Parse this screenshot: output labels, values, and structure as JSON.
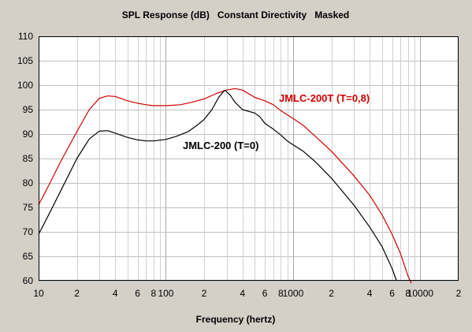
{
  "chart_data": {
    "type": "line",
    "title": "SPL Response (dB)   Constant Directivity   Masked",
    "xlabel": "Frequency (hertz)",
    "ylabel": "",
    "x_scale": "log",
    "xlim": [
      10,
      20000
    ],
    "ylim": [
      60,
      110
    ],
    "grid": true,
    "y_ticks": [
      60,
      65,
      70,
      75,
      80,
      85,
      90,
      95,
      100,
      105,
      110
    ],
    "x_tick_labels": [
      {
        "x": 10,
        "label": "10"
      },
      {
        "x": 20,
        "label": "2"
      },
      {
        "x": 40,
        "label": "4"
      },
      {
        "x": 60,
        "label": "6"
      },
      {
        "x": 80,
        "label": "8"
      },
      {
        "x": 100,
        "label": "100"
      },
      {
        "x": 200,
        "label": "2"
      },
      {
        "x": 400,
        "label": "4"
      },
      {
        "x": 600,
        "label": "6"
      },
      {
        "x": 800,
        "label": "8"
      },
      {
        "x": 1000,
        "label": "1000"
      },
      {
        "x": 2000,
        "label": "2"
      },
      {
        "x": 4000,
        "label": "4"
      },
      {
        "x": 6000,
        "label": "6"
      },
      {
        "x": 8000,
        "label": "8"
      },
      {
        "x": 10000,
        "label": "10000"
      },
      {
        "x": 20000,
        "label": "2"
      }
    ],
    "series": [
      {
        "name": "JMLC-200T (T=0,8)",
        "color": "#d00000",
        "points": [
          [
            10,
            75.5
          ],
          [
            12,
            79.5
          ],
          [
            15,
            84.5
          ],
          [
            20,
            90.5
          ],
          [
            25,
            95
          ],
          [
            30,
            97.3
          ],
          [
            35,
            97.8
          ],
          [
            40,
            97.7
          ],
          [
            50,
            96.8
          ],
          [
            60,
            96.3
          ],
          [
            70,
            96.0
          ],
          [
            80,
            95.8
          ],
          [
            100,
            95.8
          ],
          [
            130,
            96.0
          ],
          [
            160,
            96.5
          ],
          [
            200,
            97.2
          ],
          [
            250,
            98.3
          ],
          [
            300,
            99.0
          ],
          [
            350,
            99.3
          ],
          [
            400,
            99.0
          ],
          [
            500,
            97.5
          ],
          [
            600,
            96.8
          ],
          [
            700,
            96.0
          ],
          [
            800,
            94.8
          ],
          [
            1000,
            93.2
          ],
          [
            1200,
            91.8
          ],
          [
            1500,
            89.5
          ],
          [
            2000,
            86.5
          ],
          [
            3000,
            81.5
          ],
          [
            4000,
            77.5
          ],
          [
            5000,
            73.5
          ],
          [
            6000,
            69.5
          ],
          [
            7000,
            65.5
          ],
          [
            8000,
            61.0
          ],
          [
            8500,
            59.5
          ]
        ]
      },
      {
        "name": "JMLC-200 (T=0)",
        "color": "#000000",
        "points": [
          [
            10,
            69.5
          ],
          [
            12,
            73.5
          ],
          [
            15,
            78.5
          ],
          [
            20,
            85.0
          ],
          [
            25,
            89.0
          ],
          [
            30,
            90.6
          ],
          [
            35,
            90.7
          ],
          [
            40,
            90.2
          ],
          [
            50,
            89.3
          ],
          [
            60,
            88.8
          ],
          [
            70,
            88.6
          ],
          [
            80,
            88.6
          ],
          [
            100,
            88.9
          ],
          [
            120,
            89.5
          ],
          [
            150,
            90.5
          ],
          [
            180,
            92.0
          ],
          [
            200,
            93.0
          ],
          [
            230,
            95.0
          ],
          [
            260,
            97.5
          ],
          [
            290,
            99.0
          ],
          [
            320,
            98.0
          ],
          [
            350,
            96.5
          ],
          [
            400,
            95.0
          ],
          [
            500,
            94.3
          ],
          [
            550,
            93.5
          ],
          [
            600,
            92.2
          ],
          [
            700,
            91.0
          ],
          [
            800,
            89.8
          ],
          [
            900,
            88.6
          ],
          [
            1000,
            87.8
          ],
          [
            1200,
            86.5
          ],
          [
            1500,
            84.3
          ],
          [
            2000,
            81.0
          ],
          [
            3000,
            75.5
          ],
          [
            4000,
            71.0
          ],
          [
            5000,
            67.0
          ],
          [
            6000,
            62.5
          ],
          [
            6500,
            60.0
          ]
        ]
      }
    ]
  }
}
